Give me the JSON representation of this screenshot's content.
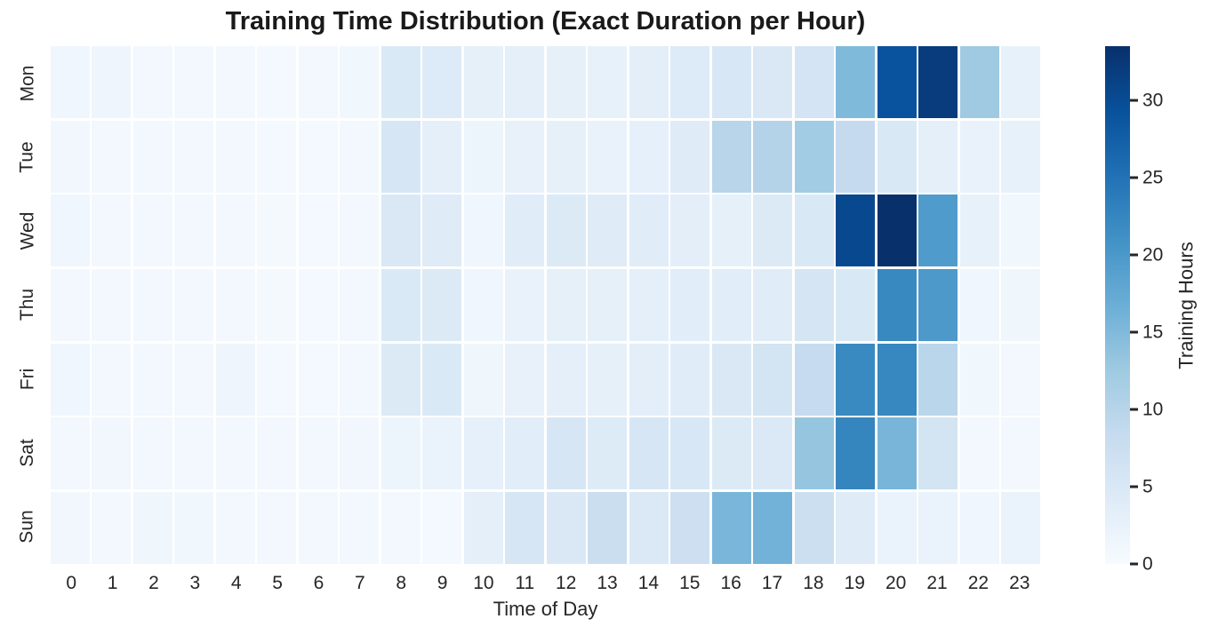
{
  "title": "Training Time Distribution (Exact Duration per Hour)",
  "chart_data": {
    "type": "heatmap",
    "title": "Training Time Distribution (Exact Duration per Hour)",
    "xlabel": "Time of Day",
    "ylabel": "",
    "x_categories": [
      "0",
      "1",
      "2",
      "3",
      "4",
      "5",
      "6",
      "7",
      "8",
      "9",
      "10",
      "11",
      "12",
      "13",
      "14",
      "15",
      "16",
      "17",
      "18",
      "19",
      "20",
      "21",
      "22",
      "23"
    ],
    "y_categories": [
      "Mon",
      "Tue",
      "Wed",
      "Thu",
      "Fri",
      "Sat",
      "Sun"
    ],
    "values": [
      [
        1.3,
        1.5,
        0.9,
        0.9,
        0.8,
        0.6,
        0.7,
        1.1,
        4.8,
        4.4,
        2.9,
        3.2,
        3.0,
        2.6,
        3.4,
        4.4,
        5.2,
        4.9,
        5.9,
        15.0,
        29.2,
        32.0,
        12.5,
        2.6
      ],
      [
        1.0,
        0.9,
        0.8,
        0.8,
        0.8,
        0.6,
        0.6,
        0.9,
        5.6,
        3.1,
        1.6,
        2.5,
        3.0,
        2.4,
        2.8,
        4.1,
        9.8,
        10.3,
        12.1,
        8.5,
        5.1,
        3.1,
        2.4,
        2.6
      ],
      [
        1.2,
        0.8,
        0.8,
        0.7,
        0.7,
        0.5,
        0.6,
        0.8,
        4.9,
        4.1,
        1.3,
        3.9,
        4.5,
        4.1,
        3.9,
        3.3,
        2.9,
        4.5,
        5.0,
        30.5,
        33.5,
        19.6,
        2.6,
        1.1
      ],
      [
        0.9,
        0.9,
        0.8,
        0.7,
        0.7,
        0.5,
        0.6,
        0.8,
        4.8,
        4.5,
        1.2,
        2.3,
        2.9,
        3.0,
        3.1,
        3.7,
        3.7,
        3.8,
        5.8,
        5.1,
        22.1,
        19.9,
        1.3,
        1.4
      ],
      [
        1.2,
        0.9,
        0.8,
        0.7,
        1.5,
        0.6,
        0.6,
        0.8,
        4.5,
        4.8,
        1.4,
        2.5,
        3.1,
        3.0,
        3.3,
        3.8,
        4.9,
        6.1,
        8.4,
        22.0,
        22.3,
        9.7,
        1.1,
        0.9
      ],
      [
        0.9,
        1.0,
        0.8,
        0.9,
        0.8,
        0.8,
        0.8,
        1.0,
        1.7,
        2.2,
        2.8,
        3.7,
        5.5,
        4.3,
        5.6,
        5.2,
        4.5,
        4.7,
        13.2,
        22.6,
        15.7,
        6.1,
        0.9,
        0.9
      ],
      [
        1.0,
        0.8,
        1.4,
        1.1,
        0.9,
        0.8,
        0.7,
        0.8,
        0.7,
        0.6,
        3.1,
        5.6,
        4.9,
        7.6,
        4.7,
        7.2,
        15.6,
        16.1,
        7.3,
        4.1,
        2.1,
        2.1,
        1.3,
        2.1
      ]
    ],
    "colorbar": {
      "label": "Training Hours",
      "ticks": [
        0,
        5,
        10,
        15,
        20,
        25,
        30
      ],
      "vmin": 0,
      "vmax": 33.5
    },
    "colormap": "Blues",
    "colormap_stops": [
      "#f7fbff",
      "#deebf7",
      "#c6dbef",
      "#9ecae1",
      "#6baed6",
      "#4292c6",
      "#2171b5",
      "#08519c",
      "#08306b"
    ],
    "grid": false,
    "cell_gap_color": "#ffffff",
    "text_color": "#262626"
  }
}
